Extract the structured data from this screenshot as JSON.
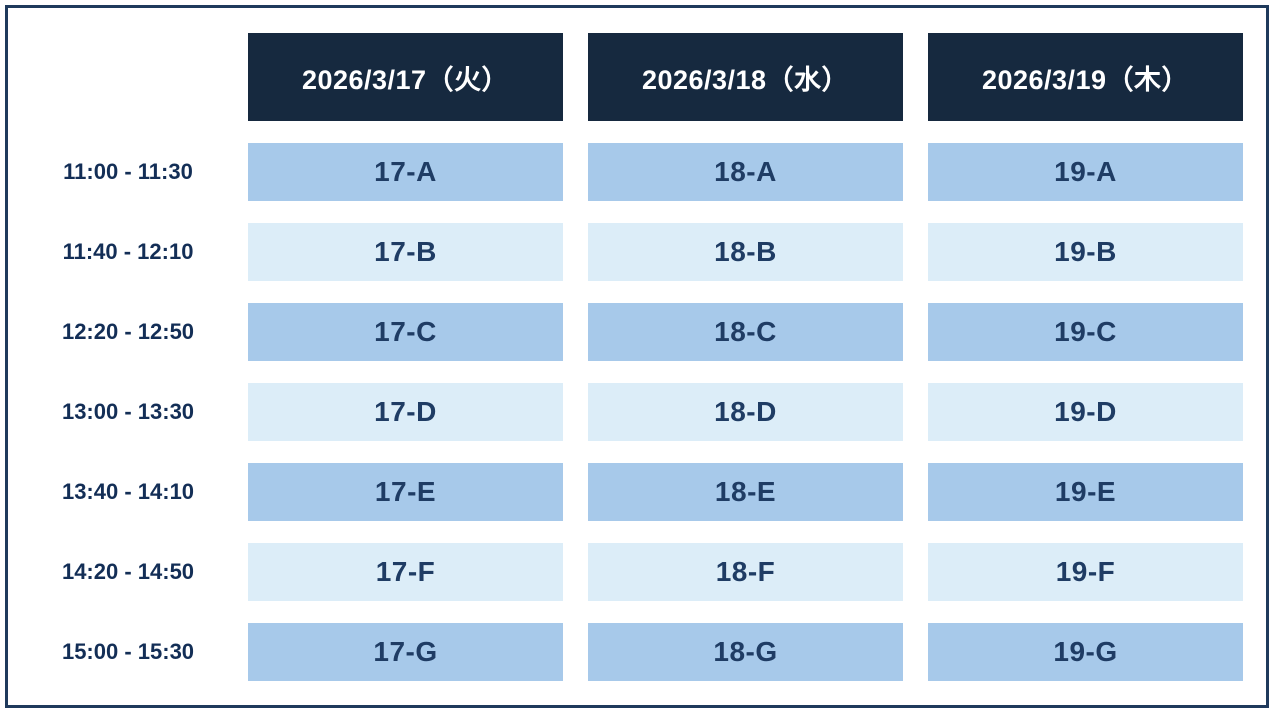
{
  "colors": {
    "frame_border": "#1f3a5c",
    "header_bg": "#16293f",
    "header_text": "#ffffff",
    "slot_dark_bg": "#a7c9ea",
    "slot_light_bg": "#dcedf8",
    "slot_text": "#1f3c64",
    "time_text": "#132e56"
  },
  "schedule": {
    "date_headers": [
      "2026/3/17（火）",
      "2026/3/18（水）",
      "2026/3/19（木）"
    ],
    "rows": [
      {
        "time": "11:00 - 11:30",
        "slots": [
          "17-A",
          "18-A",
          "19-A"
        ]
      },
      {
        "time": "11:40 - 12:10",
        "slots": [
          "17-B",
          "18-B",
          "19-B"
        ]
      },
      {
        "time": "12:20 - 12:50",
        "slots": [
          "17-C",
          "18-C",
          "19-C"
        ]
      },
      {
        "time": "13:00 - 13:30",
        "slots": [
          "17-D",
          "18-D",
          "19-D"
        ]
      },
      {
        "time": "13:40 - 14:10",
        "slots": [
          "17-E",
          "18-E",
          "19-E"
        ]
      },
      {
        "time": "14:20 - 14:50",
        "slots": [
          "17-F",
          "18-F",
          "19-F"
        ]
      },
      {
        "time": "15:00 - 15:30",
        "slots": [
          "17-G",
          "18-G",
          "19-G"
        ]
      }
    ]
  }
}
